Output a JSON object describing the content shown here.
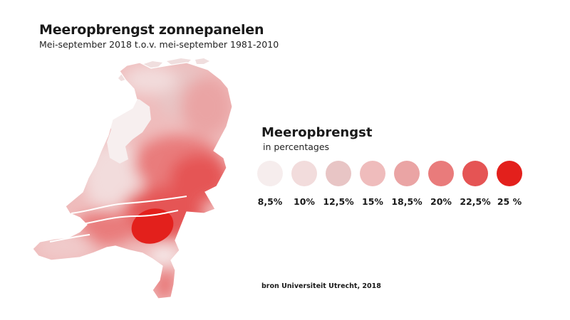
{
  "title": "Meeropbrengst zonnepanelen",
  "subtitle": "Mei-september 2018 t.o.v. mei-september 1981-2010",
  "legend": {
    "title": "Meeropbrengst",
    "subtitle": "in percentages",
    "items": [
      {
        "label": "8,5%",
        "value": 8.5,
        "color": "#f6eded"
      },
      {
        "label": "10%",
        "value": 10,
        "color": "#f2dcdc"
      },
      {
        "label": "12,5%",
        "value": 12.5,
        "color": "#e8c5c5"
      },
      {
        "label": "15%",
        "value": 15,
        "color": "#efbcbc"
      },
      {
        "label": "18,5%",
        "value": 18.5,
        "color": "#eaa4a4"
      },
      {
        "label": "20%",
        "value": 20,
        "color": "#e97b7b"
      },
      {
        "label": "22,5%",
        "value": 22.5,
        "color": "#e55454"
      },
      {
        "label": "25 %",
        "value": 25,
        "color": "#e3201c"
      }
    ]
  },
  "source": "bron Universiteit Utrecht, 2018"
}
